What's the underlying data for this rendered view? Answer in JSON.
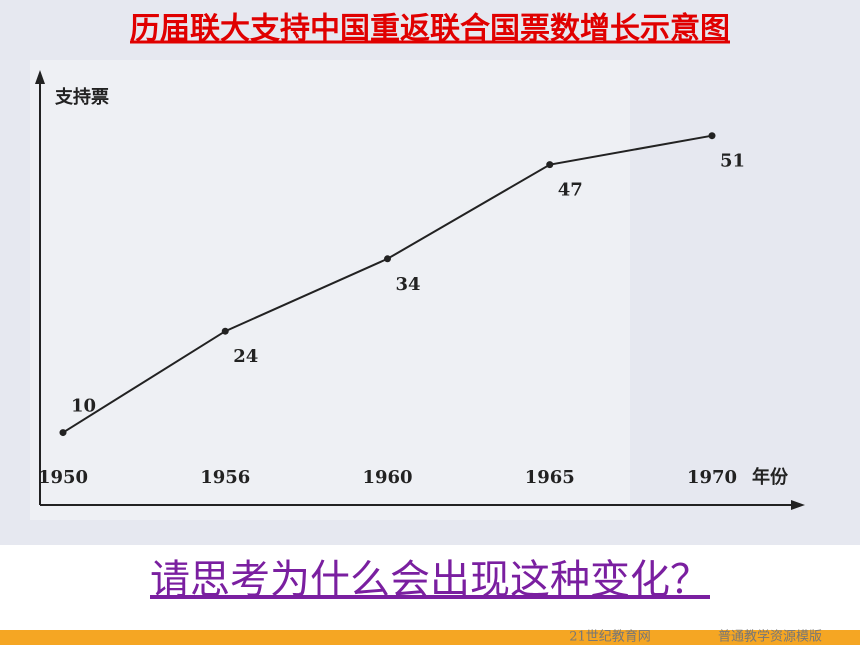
{
  "chart_data": {
    "type": "line",
    "title": "历届联大支持中国重返联合国票数增长示意图",
    "y_label": "支持票",
    "x_label": "年份",
    "categories": [
      "1950",
      "1956",
      "1960",
      "1965",
      "1970"
    ],
    "values": [
      10,
      24,
      34,
      47,
      51
    ],
    "color": "#222222",
    "ylim": [
      0,
      58
    ]
  },
  "question": "请思考为什么会出现这种变化？",
  "footer": [
    "21世纪教育网",
    "普通教学资源模版"
  ]
}
